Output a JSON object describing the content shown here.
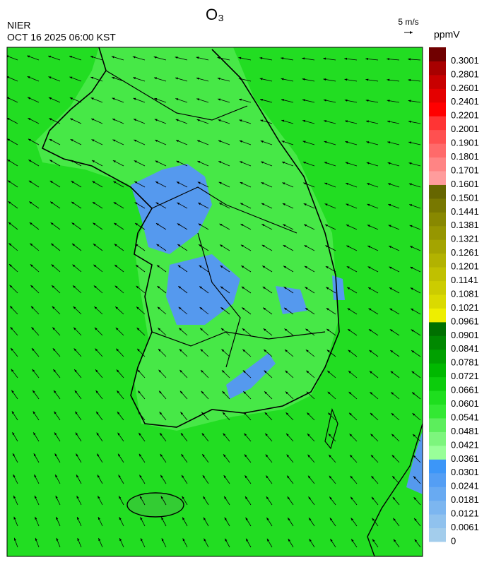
{
  "header": {
    "title": "O₃",
    "agency": "NIER",
    "datetime": "OCT 16 2025 06:00 KST",
    "wind_scale": "5 m/s",
    "unit": "ppmV"
  },
  "colorbar": {
    "labels": [
      0,
      0.0061,
      0.0121,
      0.0181,
      0.0241,
      0.0301,
      0.0361,
      0.0421,
      0.0481,
      0.0541,
      0.0601,
      0.0661,
      0.0721,
      0.0781,
      0.0841,
      0.0901,
      0.0961,
      0.1021,
      0.1081,
      0.1141,
      0.1201,
      0.1261,
      0.1321,
      0.1381,
      0.1441,
      0.1501,
      0.1601,
      0.1701,
      0.1801,
      0.1901,
      0.2001,
      0.2201,
      0.2401,
      0.2601,
      0.2801,
      0.3001
    ],
    "colors": [
      "#a3cdec",
      "#90c2ee",
      "#7cb6f0",
      "#68aaf2",
      "#549ef4",
      "#3c96f8",
      "#99ff99",
      "#7df57d",
      "#5cee5c",
      "#33e833",
      "#1ede1e",
      "#0ccc0c",
      "#00b800",
      "#00a000",
      "#008800",
      "#007000",
      "#eeee00",
      "#dada00",
      "#cccc00",
      "#c0c000",
      "#b2b200",
      "#a4a400",
      "#969600",
      "#888800",
      "#787800",
      "#666600",
      "#ff9c9c",
      "#ff8484",
      "#ff6a6a",
      "#ff5050",
      "#ff3434",
      "#ff0000",
      "#e40000",
      "#c80000",
      "#a80000",
      "#700000"
    ]
  }
}
